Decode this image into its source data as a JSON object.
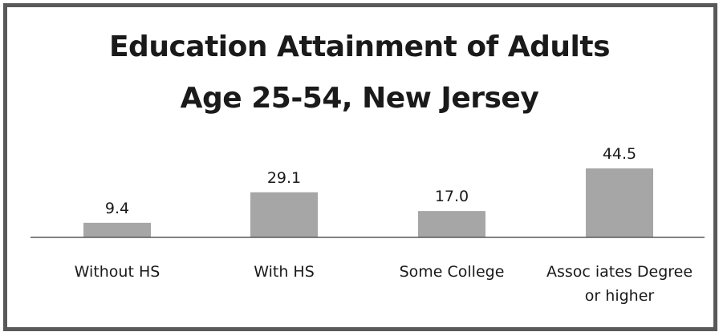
{
  "chart_data": {
    "type": "bar",
    "title_lines": [
      "Education Attainment of Adults",
      "Age 25-54, New Jersey"
    ],
    "categories": [
      [
        "Without HS"
      ],
      [
        "With HS"
      ],
      [
        "Some College"
      ],
      [
        "Assoc iates Degree",
        "or higher"
      ]
    ],
    "values": [
      9.4,
      29.1,
      17.0,
      44.5
    ],
    "value_labels": [
      "9.4",
      "29.1",
      "17.0",
      "44.5"
    ],
    "xlabel": "",
    "ylabel": "",
    "ylim": [
      0,
      44.5
    ],
    "grid": false,
    "legend": "none",
    "bar_color": "#a6a6a6",
    "axis_color": "#595959"
  }
}
